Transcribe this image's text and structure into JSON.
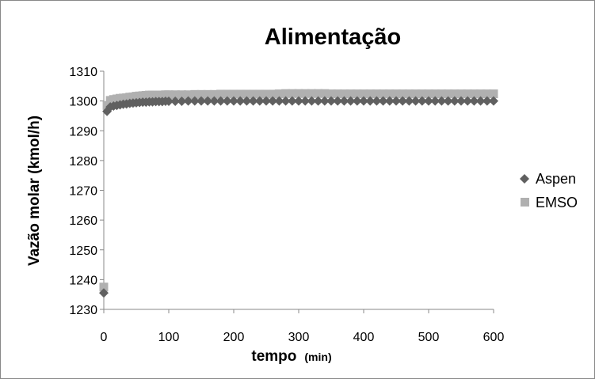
{
  "chart_data": {
    "type": "scatter",
    "title": "Alimentação",
    "ylabel": "Vazão molar (kmol/h)",
    "xlabel": "tempo",
    "xlabel_unit": "(min)",
    "xlim": [
      0,
      600
    ],
    "ylim": [
      1230,
      1310
    ],
    "xticks": [
      0,
      100,
      200,
      300,
      400,
      500,
      600
    ],
    "yticks": [
      1230,
      1240,
      1250,
      1260,
      1270,
      1280,
      1290,
      1300,
      1310
    ],
    "grid": false,
    "legend_position": "right",
    "series": [
      {
        "name": "Aspen",
        "marker": "diamond",
        "color": "#606060",
        "x": [
          0,
          5,
          10,
          15,
          20,
          25,
          30,
          35,
          40,
          45,
          50,
          55,
          60,
          65,
          70,
          75,
          80,
          85,
          90,
          95,
          100,
          110,
          120,
          130,
          140,
          150,
          160,
          170,
          180,
          190,
          200,
          210,
          220,
          230,
          240,
          250,
          260,
          270,
          280,
          290,
          300,
          310,
          320,
          330,
          340,
          350,
          360,
          370,
          380,
          390,
          400,
          410,
          420,
          430,
          440,
          450,
          460,
          470,
          480,
          490,
          500,
          510,
          520,
          530,
          540,
          550,
          560,
          570,
          580,
          590,
          600
        ],
        "y": [
          1235.5,
          1296.5,
          1298.0,
          1298.3,
          1298.5,
          1298.7,
          1298.9,
          1299.0,
          1299.2,
          1299.3,
          1299.4,
          1299.5,
          1299.6,
          1299.6,
          1299.7,
          1299.7,
          1299.8,
          1299.8,
          1299.8,
          1299.9,
          1299.9,
          1299.9,
          1299.9,
          1300.0,
          1300.0,
          1300.0,
          1300.0,
          1300.0,
          1300.0,
          1300.0,
          1300.0,
          1300.0,
          1300.0,
          1300.0,
          1300.0,
          1300.0,
          1300.0,
          1300.0,
          1300.0,
          1300.0,
          1300.0,
          1300.0,
          1300.0,
          1300.0,
          1300.0,
          1300.0,
          1300.0,
          1300.0,
          1300.0,
          1300.0,
          1300.0,
          1300.0,
          1300.0,
          1300.0,
          1300.0,
          1300.0,
          1300.0,
          1300.0,
          1300.0,
          1300.0,
          1300.0,
          1300.0,
          1300.0,
          1300.0,
          1300.0,
          1300.0,
          1300.0,
          1300.0,
          1300.0,
          1300.0,
          1300.0
        ]
      },
      {
        "name": "EMSO",
        "marker": "square",
        "color": "#b0b0b0",
        "x": [
          0,
          5,
          10,
          15,
          20,
          25,
          30,
          35,
          40,
          45,
          50,
          55,
          60,
          65,
          70,
          75,
          80,
          85,
          90,
          95,
          100,
          110,
          120,
          130,
          140,
          150,
          160,
          170,
          180,
          190,
          200,
          210,
          220,
          230,
          240,
          250,
          260,
          270,
          280,
          290,
          300,
          310,
          320,
          330,
          340,
          350,
          360,
          370,
          380,
          390,
          400,
          410,
          420,
          430,
          440,
          450,
          460,
          470,
          480,
          490,
          500,
          510,
          520,
          530,
          540,
          550,
          560,
          570,
          580,
          590,
          600
        ],
        "y": [
          1237.5,
          1298.5,
          1300.2,
          1300.5,
          1300.7,
          1300.9,
          1301.0,
          1301.1,
          1301.3,
          1301.4,
          1301.6,
          1301.7,
          1301.8,
          1301.9,
          1302.0,
          1302.0,
          1302.0,
          1302.0,
          1302.0,
          1302.1,
          1302.1,
          1302.1,
          1302.1,
          1302.1,
          1302.2,
          1302.2,
          1302.2,
          1302.2,
          1302.3,
          1302.3,
          1302.3,
          1302.3,
          1302.3,
          1302.3,
          1302.3,
          1302.3,
          1302.3,
          1302.4,
          1302.5,
          1302.5,
          1302.5,
          1302.5,
          1302.5,
          1302.5,
          1302.5,
          1302.4,
          1302.4,
          1302.4,
          1302.4,
          1302.4,
          1302.4,
          1302.4,
          1302.4,
          1302.4,
          1302.4,
          1302.4,
          1302.4,
          1302.4,
          1302.4,
          1302.4,
          1302.4,
          1302.4,
          1302.4,
          1302.4,
          1302.4,
          1302.4,
          1302.4,
          1302.4,
          1302.4,
          1302.4,
          1302.4
        ]
      }
    ]
  }
}
